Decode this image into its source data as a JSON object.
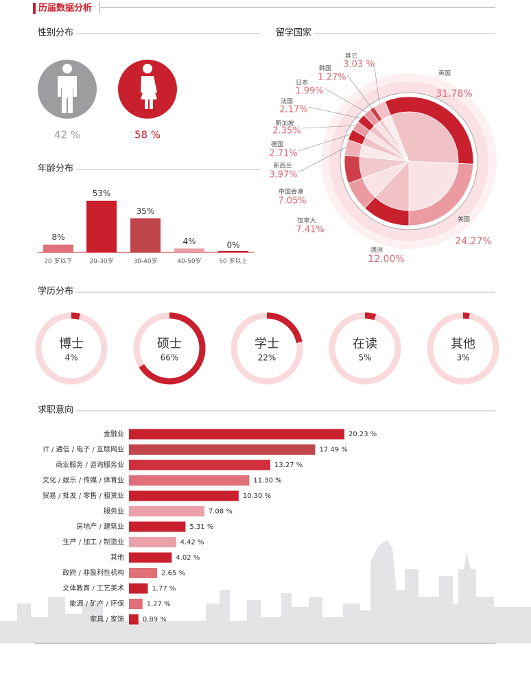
{
  "title": "历届数据分析",
  "chart_data": [
    {
      "type": "pictogram",
      "title": "性别分布",
      "values": [
        42,
        58
      ],
      "value_labels": [
        "42 %",
        "58 %"
      ],
      "colors": [
        "#9d9d9f",
        "#c8202d"
      ]
    },
    {
      "type": "bar",
      "title": "年龄分布",
      "categories": [
        "20 岁以下",
        "20-30岁",
        "30-40岁",
        "40-50岁",
        "50 岁以上"
      ],
      "values": [
        8,
        53,
        35,
        4,
        0
      ],
      "value_labels": [
        "8%",
        "53%",
        "35%",
        "4%",
        "0%"
      ],
      "colors": [
        "#e0707a",
        "#c8202d",
        "#c0454b",
        "#eaa0a8",
        "#c8202d"
      ]
    },
    {
      "type": "pie",
      "title": "留学国家",
      "categories": [
        "英国",
        "美国",
        "澳洲",
        "加拿大",
        "中国香港",
        "新西兰",
        "德国",
        "新加坡",
        "法国",
        "日本",
        "韩国",
        "其它"
      ],
      "values": [
        31.78,
        24.27,
        12.0,
        7.41,
        7.05,
        3.97,
        2.71,
        2.35,
        2.17,
        1.99,
        1.27,
        3.03
      ],
      "value_labels": [
        "31.78%",
        "24.27%",
        "12.00%",
        "7.41%",
        "7.05%",
        "3.97%",
        "2.71%",
        "2.35%",
        "2.17%",
        "1.99%",
        "1.27%",
        "3.03 %"
      ],
      "colors": [
        "#c8202d",
        "#eb9aa2",
        "#c8202d",
        "#eb9aa2",
        "#d0404a",
        "#f0b0b6",
        "#c8202d",
        "#eb9aa2",
        "#c8202d",
        "#eb9aa2",
        "#d0404a",
        "#f4c0c5"
      ]
    },
    {
      "type": "ring",
      "title": "学历分布",
      "categories": [
        "博士",
        "硕士",
        "学士",
        "在读",
        "其他"
      ],
      "values": [
        4,
        66,
        22,
        5,
        3
      ],
      "value_labels": [
        "4%",
        "66%",
        "22%",
        "5%",
        "3%"
      ],
      "color": "#c8202d"
    },
    {
      "type": "hbar",
      "title": "求职意向",
      "categories": [
        "金融业",
        "IT / 通信 / 电子 / 互联网业",
        "商业服务 / 咨询服务业",
        "文化 / 娱乐 / 传媒 / 体育业",
        "贸易 / 批发 / 零售 / 租赁业",
        "服务业",
        "房地产 / 建筑业",
        "生产 / 加工 / 制造业",
        "其他",
        "政府 / 非盈利性机构",
        "文体教育 / 工艺美术",
        "能源 / 矿产 / 环保",
        "家具 / 家饰"
      ],
      "values": [
        20.23,
        17.49,
        13.27,
        11.3,
        10.3,
        7.08,
        5.31,
        4.42,
        4.02,
        2.65,
        1.77,
        1.27,
        0.89
      ],
      "value_labels": [
        "20.23 %",
        "17.49 %",
        "13.27 %",
        "11.30 %",
        "10.30 %",
        "7.08 %",
        "5.31 %",
        "4.42 %",
        "4.02 %",
        "2.65 %",
        "1.77 %",
        "1.27 %",
        "0.89 %"
      ],
      "colors": [
        "#c8202d",
        "#c0454b",
        "#d0303c",
        "#e0707a",
        "#c8202d",
        "#eaa0a8",
        "#c8202d",
        "#eaa0a8",
        "#c8202d",
        "#e07077",
        "#c8202d",
        "#e07077",
        "#c8202d"
      ]
    }
  ]
}
